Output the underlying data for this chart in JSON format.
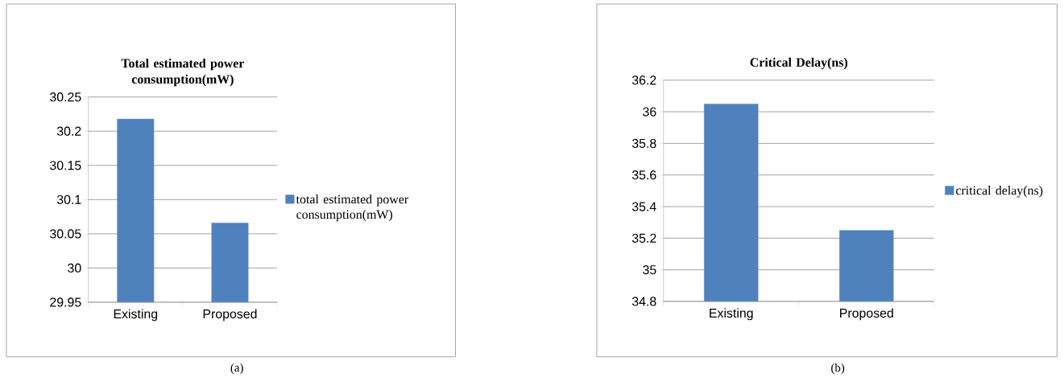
{
  "chart_data": [
    {
      "type": "bar",
      "title": "Total estimated power consumption(mW)",
      "categories": [
        "Existing",
        "Proposed"
      ],
      "series": [
        {
          "name": "total estimated power consumption(mW)",
          "color": "#4f81bd",
          "values": [
            30.218,
            30.066
          ]
        }
      ],
      "ylim": [
        29.95,
        30.25
      ],
      "yticks": [
        29.95,
        30,
        30.05,
        30.1,
        30.15,
        30.2,
        30.25
      ],
      "grid": "y",
      "legend": "right",
      "annotations": [
        "(a)"
      ]
    },
    {
      "type": "bar",
      "title": "Critical Delay(ns)",
      "categories": [
        "Existing",
        "Proposed"
      ],
      "series": [
        {
          "name": "critical delay(ns)",
          "color": "#4f81bd",
          "values": [
            36.05,
            35.25
          ]
        }
      ],
      "ylim": [
        34.8,
        36.2
      ],
      "yticks": [
        34.8,
        35,
        35.2,
        35.4,
        35.6,
        35.8,
        36,
        36.2
      ],
      "grid": "y",
      "legend": "right",
      "annotations": [
        "(b)"
      ]
    }
  ]
}
